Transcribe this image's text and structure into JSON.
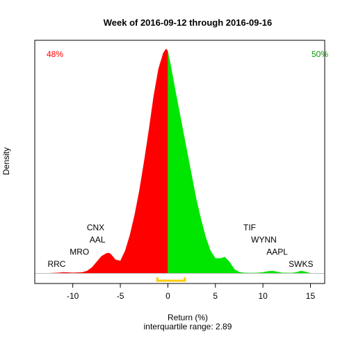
{
  "chart_data": {
    "type": "area",
    "title": "Week of 2016-09-12 through 2016-09-16",
    "xlabel": "Return (%)",
    "ylabel": "Density",
    "subtitle": "interquartile range: 2.89",
    "xlim": [
      -14,
      16.5
    ],
    "ylim": [
      0,
      1
    ],
    "x_ticks": [
      -10,
      -5,
      0,
      5,
      10,
      15
    ],
    "tick_labels": [
      "-10",
      "-5",
      "0",
      "5",
      "10",
      "15"
    ],
    "grid": false,
    "density_x": [
      -12.5,
      -11.5,
      -11.0,
      -10.5,
      -10.0,
      -9.0,
      -8.5,
      -8.0,
      -7.5,
      -7.0,
      -6.5,
      -6.2,
      -6.0,
      -5.5,
      -5.0,
      -4.5,
      -4.0,
      -3.5,
      -3.0,
      -2.5,
      -2.0,
      -1.5,
      -1.0,
      -0.5,
      -0.2,
      0.0,
      0.3,
      0.6,
      1.0,
      1.5,
      2.0,
      2.5,
      3.0,
      3.5,
      4.0,
      4.5,
      5.0,
      5.5,
      6.0,
      6.5,
      7.0,
      7.5,
      8.0,
      8.5,
      9.0,
      9.5,
      10.0,
      10.5,
      11.0,
      11.5,
      12.0,
      13.0,
      13.5,
      14.0,
      14.5,
      15.0
    ],
    "density_y": [
      0.0,
      0.002,
      0.004,
      0.003,
      0.002,
      0.004,
      0.01,
      0.025,
      0.05,
      0.075,
      0.088,
      0.09,
      0.085,
      0.06,
      0.055,
      0.1,
      0.17,
      0.26,
      0.37,
      0.5,
      0.64,
      0.79,
      0.91,
      0.98,
      1.0,
      0.99,
      0.93,
      0.86,
      0.77,
      0.66,
      0.55,
      0.44,
      0.33,
      0.24,
      0.16,
      0.1,
      0.066,
      0.066,
      0.072,
      0.05,
      0.018,
      0.005,
      0.002,
      0.001,
      0.001,
      0.002,
      0.004,
      0.008,
      0.01,
      0.006,
      0.002,
      0.001,
      0.004,
      0.01,
      0.006,
      0.0
    ],
    "split_at": 0,
    "negative_pct_label": "48%",
    "positive_pct_label": "50%",
    "negative_color": "#ff0000",
    "positive_color": "#00e600",
    "quartile_color": "#ffcc00",
    "iqr_bracket": [
      -1.1,
      1.79
    ],
    "negative_labels": [
      {
        "ticker": "RRC",
        "x": -11.7,
        "level": 1
      },
      {
        "ticker": "MRO",
        "x": -9.3,
        "level": 2
      },
      {
        "ticker": "AAL",
        "x": -7.4,
        "level": 3
      },
      {
        "ticker": "CNX",
        "x": -7.6,
        "level": 4
      }
    ],
    "positive_labels": [
      {
        "ticker": "SWKS",
        "x": 14.0,
        "level": 1
      },
      {
        "ticker": "AAPL",
        "x": 11.5,
        "level": 2
      },
      {
        "ticker": "WYNN",
        "x": 10.1,
        "level": 3
      },
      {
        "ticker": "TIF",
        "x": 8.6,
        "level": 4
      }
    ]
  }
}
